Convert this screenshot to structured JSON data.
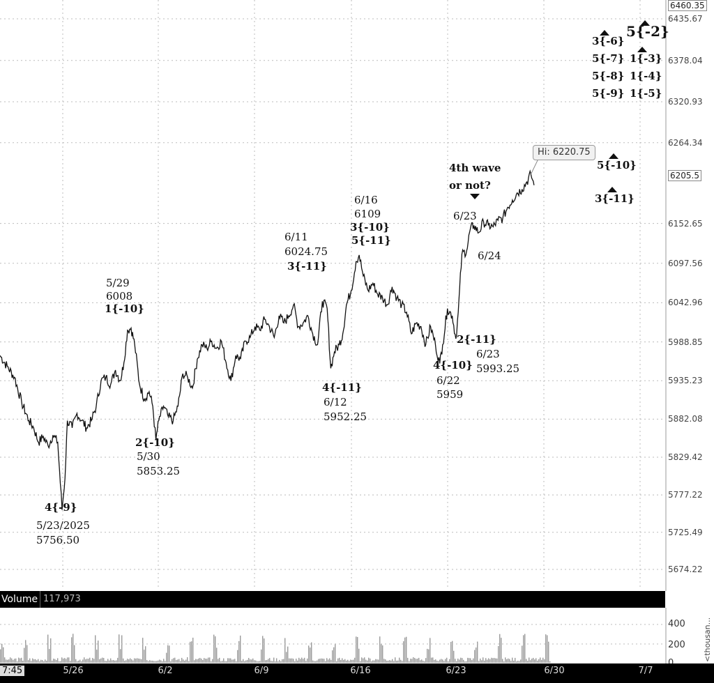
{
  "chart_data": {
    "type": "line",
    "title": "",
    "y_ticks": [
      "6460.35",
      "6435.67",
      "6378.04",
      "6320.93",
      "6264.34",
      "6205.5",
      "6152.65",
      "6097.56",
      "6042.96",
      "5988.85",
      "5935.23",
      "5882.08",
      "5829.42",
      "5777.22",
      "5725.49",
      "5674.22"
    ],
    "ylim": [
      5650,
      6460.35
    ],
    "x_ticks": [
      "5/26",
      "6/2",
      "6/9",
      "6/16",
      "6/23",
      "6/30",
      "7/7"
    ],
    "last_price": "6205.5",
    "top_price": "6460.35",
    "hi_label": "Hi: 6220.75",
    "series": [
      {
        "points": [
          [
            0,
            5970
          ],
          [
            3,
            5955
          ],
          [
            6,
            5940
          ],
          [
            9,
            5905
          ],
          [
            12,
            5880
          ],
          [
            14,
            5870
          ],
          [
            16,
            5850
          ],
          [
            18,
            5858
          ],
          [
            20,
            5845
          ],
          [
            22,
            5860
          ],
          [
            24,
            5850
          ],
          [
            25.8,
            5756.5
          ],
          [
            27,
            5800
          ],
          [
            28,
            5880
          ],
          [
            30,
            5870
          ],
          [
            32,
            5890
          ],
          [
            34,
            5880
          ],
          [
            36,
            5870
          ],
          [
            38,
            5880
          ],
          [
            40,
            5900
          ],
          [
            42,
            5935
          ],
          [
            44,
            5940
          ],
          [
            46,
            5930
          ],
          [
            48,
            5950
          ],
          [
            50,
            5935
          ],
          [
            51.5,
            5960
          ],
          [
            53,
            6005
          ],
          [
            54.5,
            6008
          ],
          [
            56,
            5985
          ],
          [
            58,
            5930
          ],
          [
            60,
            5910
          ],
          [
            62,
            5920
          ],
          [
            63.5,
            5900
          ],
          [
            64.8,
            5853.25
          ],
          [
            66,
            5880
          ],
          [
            68,
            5900
          ],
          [
            70,
            5885
          ],
          [
            72,
            5880
          ],
          [
            74,
            5900
          ],
          [
            76,
            5945
          ],
          [
            78,
            5940
          ],
          [
            80,
            5925
          ],
          [
            82,
            5965
          ],
          [
            84,
            5985
          ],
          [
            86,
            5980
          ],
          [
            88,
            5990
          ],
          [
            90,
            5980
          ],
          [
            92,
            5990
          ],
          [
            94,
            5960
          ],
          [
            96,
            5935
          ],
          [
            98,
            5970
          ],
          [
            100,
            5965
          ],
          [
            102,
            5990
          ],
          [
            104,
            5995
          ],
          [
            106,
            6010
          ],
          [
            108,
            6005
          ],
          [
            110,
            6020
          ],
          [
            112,
            6010
          ],
          [
            114,
            5995
          ],
          [
            116,
            6025
          ],
          [
            118,
            6015
          ],
          [
            120,
            6024.75
          ],
          [
            122,
            6040
          ],
          [
            124,
            6010
          ],
          [
            126,
            6015
          ],
          [
            128,
            6025
          ],
          [
            130,
            6000
          ],
          [
            132,
            5985
          ],
          [
            134,
            6045
          ],
          [
            136,
            6035
          ],
          [
            137.5,
            5952.25
          ],
          [
            139,
            5975
          ],
          [
            141,
            5985
          ],
          [
            142.5,
            6000
          ],
          [
            144,
            6040
          ],
          [
            146,
            6060
          ],
          [
            148,
            6100
          ],
          [
            149.3,
            6109
          ],
          [
            151,
            6080
          ],
          [
            153,
            6060
          ],
          [
            155,
            6070
          ],
          [
            157,
            6055
          ],
          [
            159,
            6050
          ],
          [
            161,
            6040
          ],
          [
            163,
            6065
          ],
          [
            165,
            6050
          ],
          [
            167,
            6040
          ],
          [
            169,
            6030
          ],
          [
            171,
            6000
          ],
          [
            173,
            6015
          ],
          [
            175,
            6010
          ],
          [
            177,
            5985
          ],
          [
            179,
            6010
          ],
          [
            181,
            5985
          ],
          [
            182.8,
            5959
          ],
          [
            184,
            5985
          ],
          [
            186,
            6035
          ],
          [
            188,
            6025
          ],
          [
            189.5,
            5993.25
          ],
          [
            190.5,
            6030
          ],
          [
            192,
            6110
          ],
          [
            194,
            6115
          ],
          [
            195.5,
            6145
          ],
          [
            197,
            6150
          ],
          [
            199,
            6140
          ],
          [
            201,
            6155
          ],
          [
            203,
            6150
          ],
          [
            205,
            6148
          ],
          [
            207,
            6157
          ],
          [
            209,
            6160
          ],
          [
            211,
            6175
          ],
          [
            213,
            6185
          ],
          [
            215,
            6195
          ],
          [
            217,
            6200
          ],
          [
            219,
            6210
          ],
          [
            220.7,
            6220.75
          ],
          [
            222,
            6205.5
          ]
        ]
      }
    ]
  },
  "annotations": {
    "wave_4_9": "4{-9}",
    "date_5_23": "5/23/2025",
    "price_5_23": "5756.50",
    "date_5_29": "5/29",
    "price_5_29": "6008",
    "wave_1_10": "1{-10}",
    "wave_2_10": "2{-10}",
    "date_5_30": "5/30",
    "price_5_30": "5853.25",
    "date_6_11": "6/11",
    "price_6_11": "6024.75",
    "wave_3_11_a": "3{-11}",
    "wave_4_11": "4{-11}",
    "date_6_12": "6/12",
    "price_6_12": "5952.25",
    "date_6_16": "6/16",
    "price_6_16": "6109",
    "wave_3_10": "3{-10}",
    "wave_5_11": "5{-11}",
    "wave_4_10": "4{-10}",
    "date_6_22": "6/22",
    "price_6_22": "5959",
    "wave_2_11": "2{-11}",
    "date_6_23_low": "6/23",
    "price_6_23": "5993.25",
    "date_6_23_high": "6/23",
    "date_6_24": "6/24",
    "question_line1": "4th wave",
    "question_line2": "or not?",
    "target_3_6": "3{-6}",
    "target_5_2": "5{-2}",
    "target_5_7": "5{-7}",
    "target_1_3": "1{-3}",
    "target_5_8": "5{-8}",
    "target_1_4": "1{-4}",
    "target_5_9": "5{-9}",
    "target_1_5": "1{-5}",
    "target_5_10": "5{-10}",
    "target_3_11": "3{-11}"
  },
  "volume": {
    "label": "Volume",
    "count": "117,973",
    "ticks": [
      "400",
      "200",
      "0"
    ],
    "unit": "<thousan..."
  },
  "time": {
    "now": "7:45"
  },
  "colors": {
    "price_line": "#111111",
    "grid": "#bbbbbb",
    "volume_bars": "#9a9a9a"
  }
}
